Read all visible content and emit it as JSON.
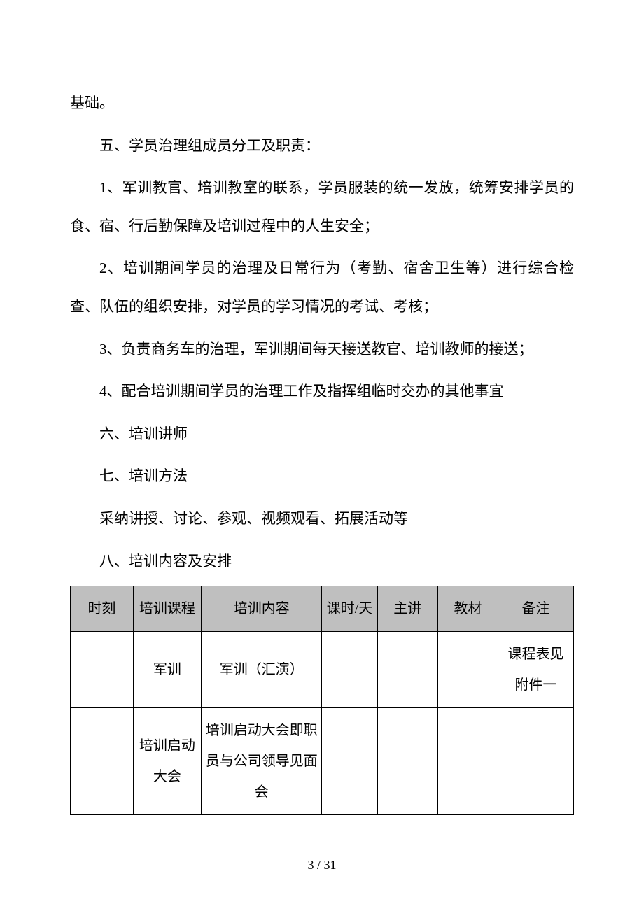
{
  "paragraphs": {
    "p0": "基础。",
    "p1": "五、学员治理组成员分工及职责：",
    "p2": "1、军训教官、培训教室的联系，学员服装的统一发放，统筹安排学员的食、宿、行后勤保障及培训过程中的人生安全；",
    "p3": "2、培训期间学员的治理及日常行为（考勤、宿舍卫生等）进行综合检查、队伍的组织安排，对学员的学习情况的考试、考核；",
    "p4": "3、负责商务车的治理，军训期间每天接送教官、培训教师的接送；",
    "p5": "4、配合培训期间学员的治理工作及指挥组临时交办的其他事宜",
    "p6": "六、培训讲师",
    "p7": "七、培训方法",
    "p8": "采纳讲授、讨论、参观、视频观看、拓展活动等",
    "p9": "八、培训内容及安排"
  },
  "table": {
    "headers": {
      "time": "时刻",
      "course": "培训课程",
      "content": "培训内容",
      "hours": "课时/天",
      "speaker": "主讲",
      "material": "教材",
      "notes": "备注"
    },
    "rows": [
      {
        "time": "",
        "course": "军训",
        "content": "军训（汇演）",
        "hours": "",
        "speaker": "",
        "material": "",
        "notes": "课程表见附件一"
      },
      {
        "time": "",
        "course": "培训启动大会",
        "content": "培训启动大会即职员与公司领导见面会",
        "hours": "",
        "speaker": "",
        "material": "",
        "notes": ""
      }
    ]
  },
  "page_number": "3 / 31"
}
